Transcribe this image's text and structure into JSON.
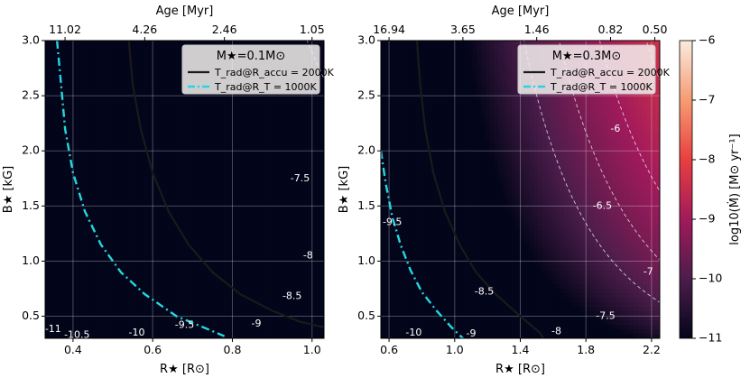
{
  "chart_data": [
    {
      "type": "heatmap",
      "title": "M★ = 0.1 M⊙",
      "xlabel": "R★ [R⊙]",
      "ylabel": "B★ [kG]",
      "top_label": "Age [Myr]",
      "xlim": [
        0.33,
        1.03
      ],
      "ylim": [
        0.3,
        3.0
      ],
      "x_ticks": [
        0.4,
        0.6,
        0.8,
        1.0
      ],
      "x_tick_labels": [
        "0.4",
        "0.6",
        "0.8",
        "1.0"
      ],
      "y_ticks": [
        0.5,
        1.0,
        1.5,
        2.0,
        2.5,
        3.0
      ],
      "y_tick_labels": [
        "0.5",
        "1.0",
        "1.5",
        "2.0",
        "2.5",
        "3.0"
      ],
      "top_ticks": [
        0.38,
        0.58,
        0.78,
        1.0
      ],
      "top_tick_labels": [
        "11.02",
        "4.26",
        "2.46",
        "1.05"
      ],
      "grid": true,
      "legend_position": "top-right",
      "legend_title": "M★=0.1M⊙",
      "legend": [
        {
          "label": "T_rad@R_accu = 2000K",
          "style": "solid",
          "color": "#1a1a1a"
        },
        {
          "label": "T_rad@R_T = 1000K",
          "style": "dashdot",
          "color": "#22d8e0"
        }
      ],
      "colormap_model": {
        "base_log_mdot": -12.2,
        "coef_logR": 7.5,
        "coef_logB": 2.6
      },
      "contour_levels": [
        -11,
        -10.5,
        -10,
        -9.5,
        -9,
        -8.5,
        -8,
        -7.5
      ],
      "contour_labels": [
        {
          "level": -11,
          "text": "-11",
          "x": 0.35,
          "y": 0.38
        },
        {
          "level": -10.5,
          "text": "-10.5",
          "x": 0.41,
          "y": 0.33
        },
        {
          "level": -10,
          "text": "-10",
          "x": 0.56,
          "y": 0.35
        },
        {
          "level": -9.5,
          "text": "-9.5",
          "x": 0.68,
          "y": 0.42
        },
        {
          "level": -9,
          "text": "-9",
          "x": 0.86,
          "y": 0.43
        },
        {
          "level": -8.5,
          "text": "-8.5",
          "x": 0.95,
          "y": 0.68
        },
        {
          "level": -8,
          "text": "-8",
          "x": 0.99,
          "y": 1.05
        },
        {
          "level": -7.5,
          "text": "-7.5",
          "x": 0.97,
          "y": 1.75
        }
      ],
      "curve_2000K": {
        "x": [
          0.54,
          0.55,
          0.57,
          0.6,
          0.64,
          0.69,
          0.75,
          0.82,
          0.9,
          0.97,
          1.03
        ],
        "y": [
          3.0,
          2.6,
          2.2,
          1.8,
          1.45,
          1.15,
          0.9,
          0.7,
          0.55,
          0.45,
          0.4
        ]
      },
      "curve_1000K": {
        "x": [
          0.36,
          0.37,
          0.38,
          0.4,
          0.43,
          0.47,
          0.52,
          0.58,
          0.66,
          0.74,
          0.78
        ],
        "y": [
          3.0,
          2.6,
          2.2,
          1.8,
          1.45,
          1.15,
          0.9,
          0.7,
          0.5,
          0.38,
          0.32
        ]
      }
    },
    {
      "type": "heatmap",
      "title": "M★ = 0.3 M⊙",
      "xlabel": "R★ [R⊙]",
      "ylabel": "B★ [kG]",
      "top_label": "Age [Myr]",
      "xlim": [
        0.55,
        2.25
      ],
      "ylim": [
        0.3,
        3.0
      ],
      "x_ticks": [
        0.6,
        1.0,
        1.4,
        1.8,
        2.2
      ],
      "x_tick_labels": [
        "0.6",
        "1.0",
        "1.4",
        "1.8",
        "2.2"
      ],
      "y_ticks": [
        0.5,
        1.0,
        1.5,
        2.0,
        2.5,
        3.0
      ],
      "y_tick_labels": [
        "0.5",
        "1.0",
        "1.5",
        "2.0",
        "2.5",
        "3.0"
      ],
      "top_ticks": [
        0.6,
        1.05,
        1.5,
        1.95,
        2.22
      ],
      "top_tick_labels": [
        "16.94",
        "3.65",
        "1.46",
        "0.82",
        "0.50"
      ],
      "grid": true,
      "legend_position": "top-right",
      "legend_title": "M★=0.3M⊙",
      "legend": [
        {
          "label": "T_rad@R_accu = 2000K",
          "style": "solid",
          "color": "#1a1a1a"
        },
        {
          "label": "T_rad@R_T = 1000K",
          "style": "dashdot",
          "color": "#22d8e0"
        }
      ],
      "colormap_model": {
        "base_log_mdot": -12.4,
        "coef_logR": 8.2,
        "coef_logB": 2.4
      },
      "contour_levels": [
        -10,
        -9.5,
        -9,
        -8.5,
        -8,
        -7.5,
        -7,
        -6.5,
        -6
      ],
      "contour_labels": [
        {
          "level": -10,
          "text": "-10",
          "x": 0.75,
          "y": 0.35
        },
        {
          "level": -9.5,
          "text": "-9.5",
          "x": 0.62,
          "y": 1.35
        },
        {
          "level": -9,
          "text": "-9",
          "x": 1.1,
          "y": 0.34
        },
        {
          "level": -8.5,
          "text": "-8.5",
          "x": 1.18,
          "y": 0.72
        },
        {
          "level": -8,
          "text": "-8",
          "x": 1.62,
          "y": 0.36
        },
        {
          "level": -7.5,
          "text": "-7.5",
          "x": 1.92,
          "y": 0.5
        },
        {
          "level": -7,
          "text": "-7",
          "x": 2.18,
          "y": 0.9
        },
        {
          "level": -6.5,
          "text": "-6.5",
          "x": 1.9,
          "y": 1.5
        },
        {
          "level": -6,
          "text": "-6",
          "x": 1.98,
          "y": 2.2
        }
      ],
      "curve_2000K": {
        "x": [
          0.77,
          0.79,
          0.82,
          0.87,
          0.94,
          1.03,
          1.13,
          1.25,
          1.4,
          1.52,
          1.54
        ],
        "y": [
          3.0,
          2.6,
          2.2,
          1.8,
          1.45,
          1.15,
          0.9,
          0.7,
          0.5,
          0.35,
          0.3
        ]
      },
      "curve_1000K": {
        "x": [
          0.55,
          0.58,
          0.62,
          0.67,
          0.73,
          0.8,
          0.89,
          0.98,
          1.05
        ],
        "y": [
          2.0,
          1.7,
          1.4,
          1.15,
          0.92,
          0.72,
          0.55,
          0.4,
          0.3
        ]
      }
    }
  ],
  "colorbar": {
    "label": "log10(Ṁ) [M⊙ yr⁻¹]",
    "range": [
      -11,
      -6
    ],
    "ticks": [
      -11,
      -10,
      -9,
      -8,
      -7,
      -6
    ],
    "tick_labels": [
      "−11",
      "−10",
      "−9",
      "−8",
      "−7",
      "−6"
    ]
  },
  "colors": {
    "cmap": [
      "#03051a",
      "#4c1d4b",
      "#a11a5b",
      "#e83f3f",
      "#f69c73",
      "#faebdd"
    ],
    "curve_2000K": "#1a1a1a",
    "curve_1000K": "#22d8e0",
    "contour": "#ffffff"
  }
}
